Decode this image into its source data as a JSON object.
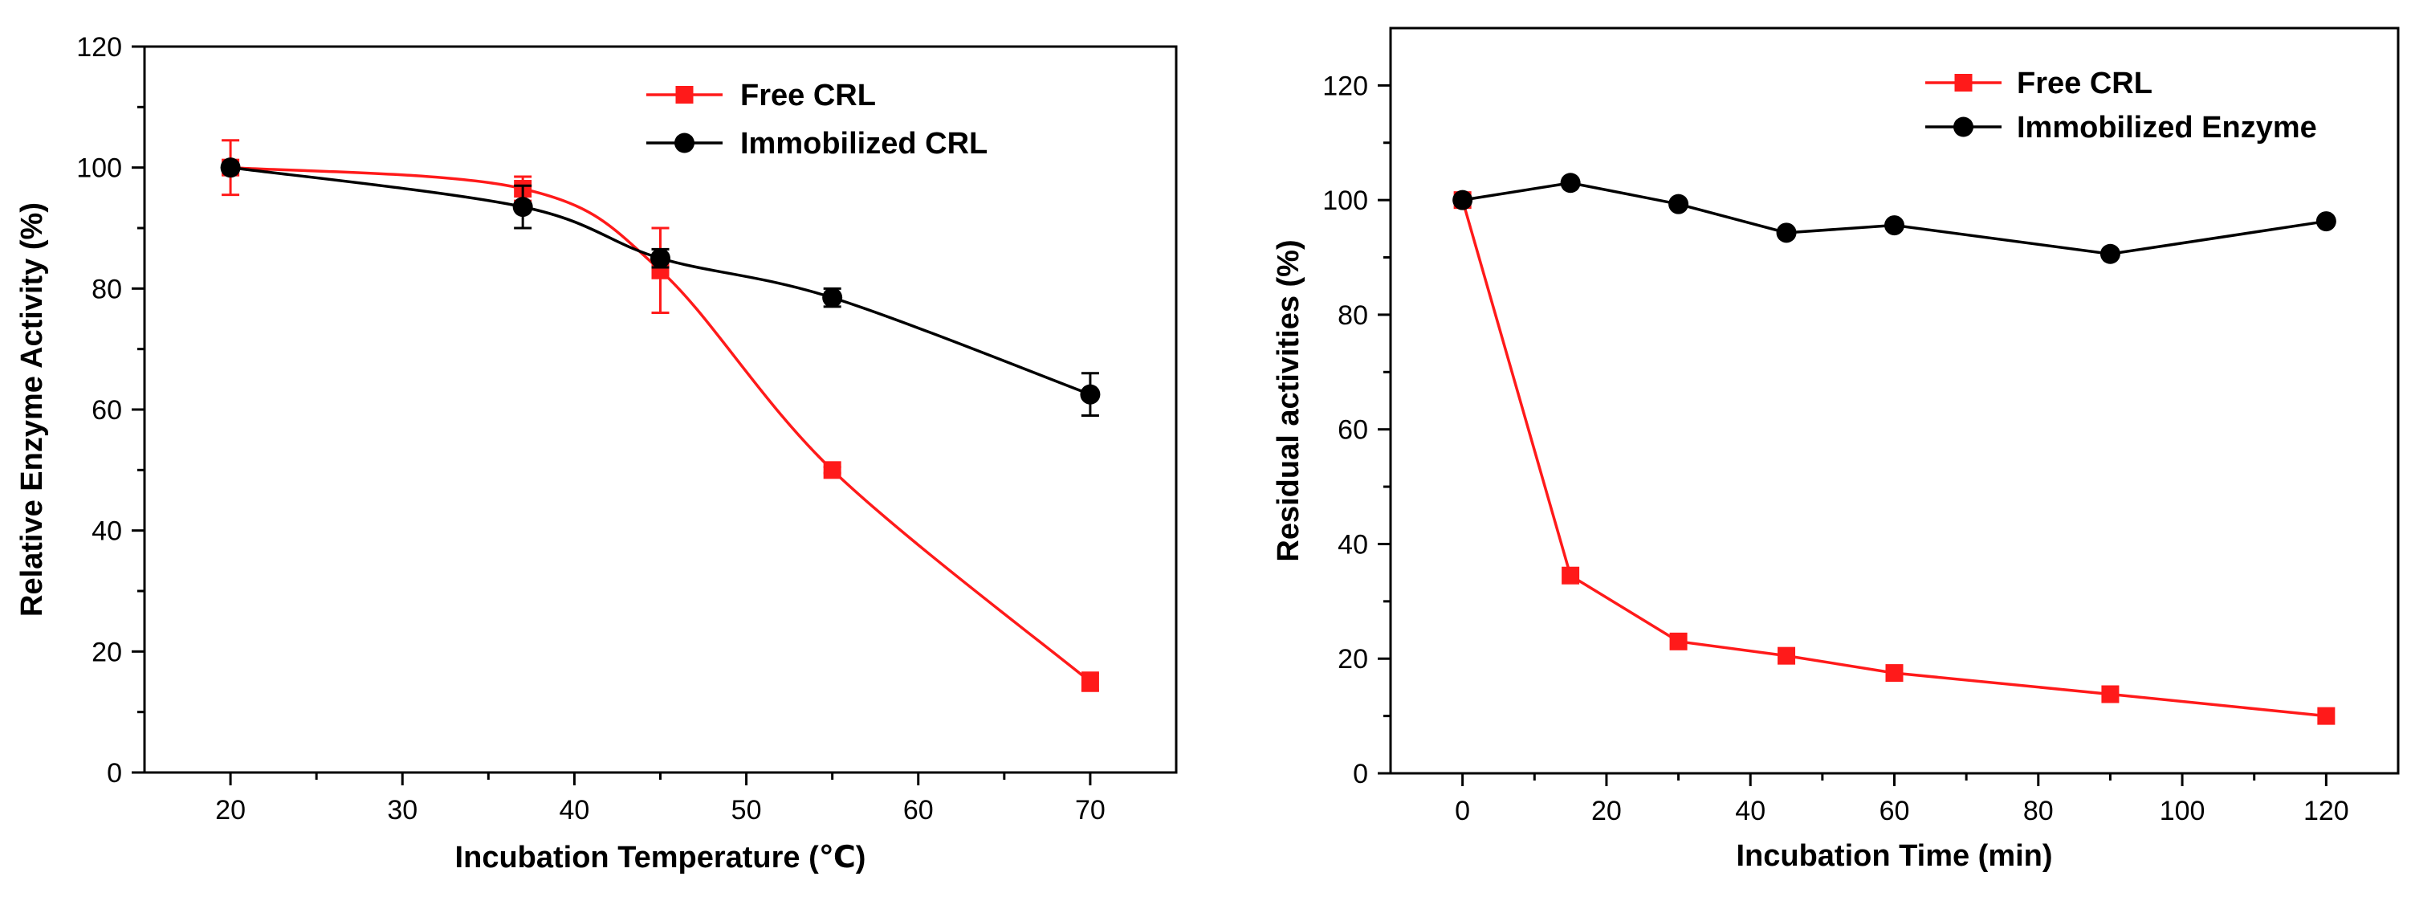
{
  "chart_data": [
    {
      "type": "line",
      "title": "",
      "xlabel": "Incubation Temperature (℃)",
      "ylabel": "Relative Enzyme Activity (%)",
      "xlim": [
        15,
        75
      ],
      "ylim": [
        0,
        120
      ],
      "x_ticks": [
        "20",
        "30",
        "40",
        "50",
        "60",
        "70"
      ],
      "y_ticks": [
        "0",
        "20",
        "40",
        "60",
        "80",
        "100",
        "120"
      ],
      "grid": false,
      "legend_position": "top-right",
      "series": [
        {
          "name": "Free CRL",
          "color": "#ff1a1a",
          "marker": "square",
          "smooth": true,
          "x": [
            20,
            37,
            45,
            55,
            70
          ],
          "values": [
            100,
            96.5,
            83,
            50,
            15
          ],
          "error": [
            4.5,
            2,
            7,
            0.5,
            1.5
          ]
        },
        {
          "name": "Immobilized CRL",
          "color": "#000000",
          "marker": "circle",
          "smooth": true,
          "x": [
            20,
            37,
            45,
            55,
            70
          ],
          "values": [
            100,
            93.5,
            85,
            78.5,
            62.5
          ],
          "error": [
            0.5,
            3.5,
            1.5,
            1.5,
            3.5
          ]
        }
      ]
    },
    {
      "type": "line",
      "title": "",
      "xlabel": "Incubation Time (min)",
      "ylabel": "Residual activities (%)",
      "xlim": [
        -10,
        130
      ],
      "ylim": [
        0,
        130
      ],
      "x_ticks": [
        "0",
        "20",
        "40",
        "60",
        "80",
        "100",
        "120"
      ],
      "y_ticks": [
        "0",
        "20",
        "40",
        "60",
        "80",
        "100",
        "120"
      ],
      "grid": false,
      "legend_position": "top-right",
      "series": [
        {
          "name": "Free CRL",
          "color": "#ff1a1a",
          "marker": "square",
          "smooth": false,
          "x": [
            0,
            15,
            30,
            45,
            60,
            90,
            120
          ],
          "values": [
            100,
            34.5,
            23,
            20.5,
            17.5,
            13.8,
            10
          ]
        },
        {
          "name": "Immobilized Enzyme",
          "color": "#000000",
          "marker": "circle",
          "smooth": false,
          "x": [
            0,
            15,
            30,
            45,
            60,
            90,
            120
          ],
          "values": [
            100,
            103,
            99.3,
            94.3,
            95.6,
            90.6,
            96.3
          ]
        }
      ]
    }
  ]
}
